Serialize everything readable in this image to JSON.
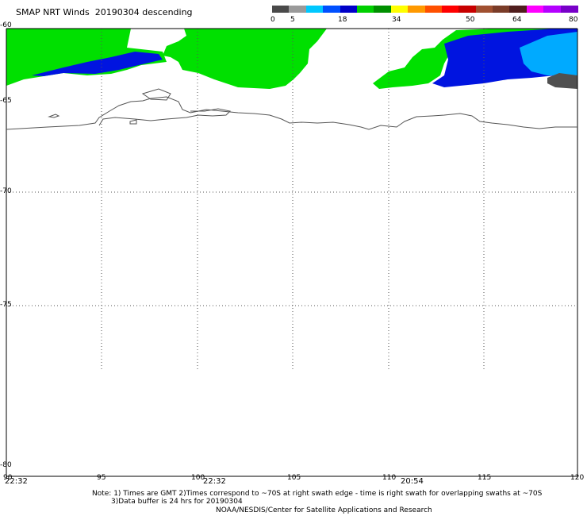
{
  "title": "SMAP NRT Winds  20190304 descending",
  "colorbar": {
    "labels": [
      "0",
      "5",
      "18",
      "34",
      "50",
      "64",
      "80"
    ],
    "colors": [
      "#4a4a4a",
      "#9a9a9a",
      "#00c8ff",
      "#0050ff",
      "#0000c8",
      "#00d000",
      "#009000",
      "#ffff00",
      "#ff9900",
      "#ff5000",
      "#ff0000",
      "#c80000",
      "#a05030",
      "#7a3c28",
      "#501e1e",
      "#ff00ff",
      "#b400ff",
      "#7800c8"
    ]
  },
  "map": {
    "lat_labels": [
      "-60",
      "-65",
      "-70",
      "-75",
      "-80"
    ],
    "lon_labels": [
      "90",
      "95",
      "100",
      "105",
      "110",
      "115",
      "120"
    ],
    "times": [
      "22:32",
      "22:32",
      "20:54"
    ],
    "wind_colors": {
      "green": "#00e000",
      "blue": "#0014e0",
      "light_blue": "#00aaff",
      "dark_gray": "#505050"
    }
  },
  "notes": {
    "line1": "Note: 1) Times are GMT 2)Times correspond to ~70S at right swath edge - time is right swath for overlapping swaths at ~70S",
    "line2": "3)Data buffer is 24 hrs for 20190304",
    "line3": "NOAA/NESDIS/Center for Satellite Applications and Research"
  }
}
